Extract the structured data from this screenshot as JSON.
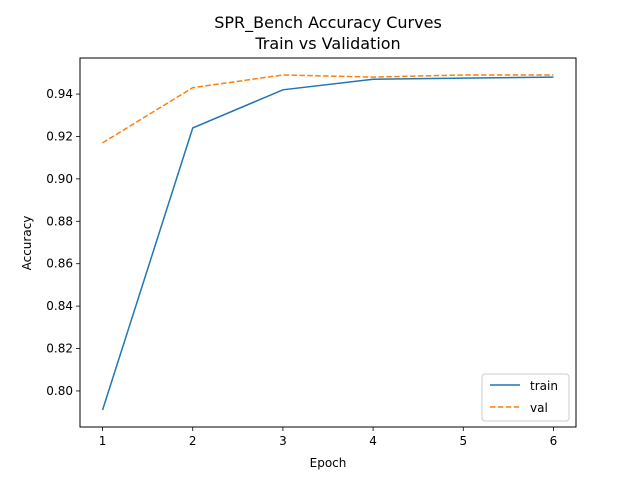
{
  "chart_data": {
    "type": "line",
    "title": "SPR_Bench Accuracy Curves",
    "subtitle": "Train vs Validation",
    "xlabel": "Epoch",
    "ylabel": "Accuracy",
    "x": [
      1,
      2,
      3,
      4,
      5,
      6
    ],
    "xlim": [
      0.75,
      6.25
    ],
    "ylim": [
      0.783,
      0.957
    ],
    "xticks": [
      1,
      2,
      3,
      4,
      5,
      6
    ],
    "yticks": [
      0.8,
      0.82,
      0.84,
      0.86,
      0.88,
      0.9,
      0.92,
      0.94
    ],
    "grid": false,
    "legend_position": "lower-right",
    "series": [
      {
        "name": "train",
        "values": [
          0.791,
          0.924,
          0.942,
          0.947,
          0.9475,
          0.948
        ],
        "color": "#1f77b4",
        "style": "solid"
      },
      {
        "name": "val",
        "values": [
          0.917,
          0.943,
          0.949,
          0.948,
          0.949,
          0.949
        ],
        "color": "#ff7f0e",
        "style": "dashed"
      }
    ]
  }
}
